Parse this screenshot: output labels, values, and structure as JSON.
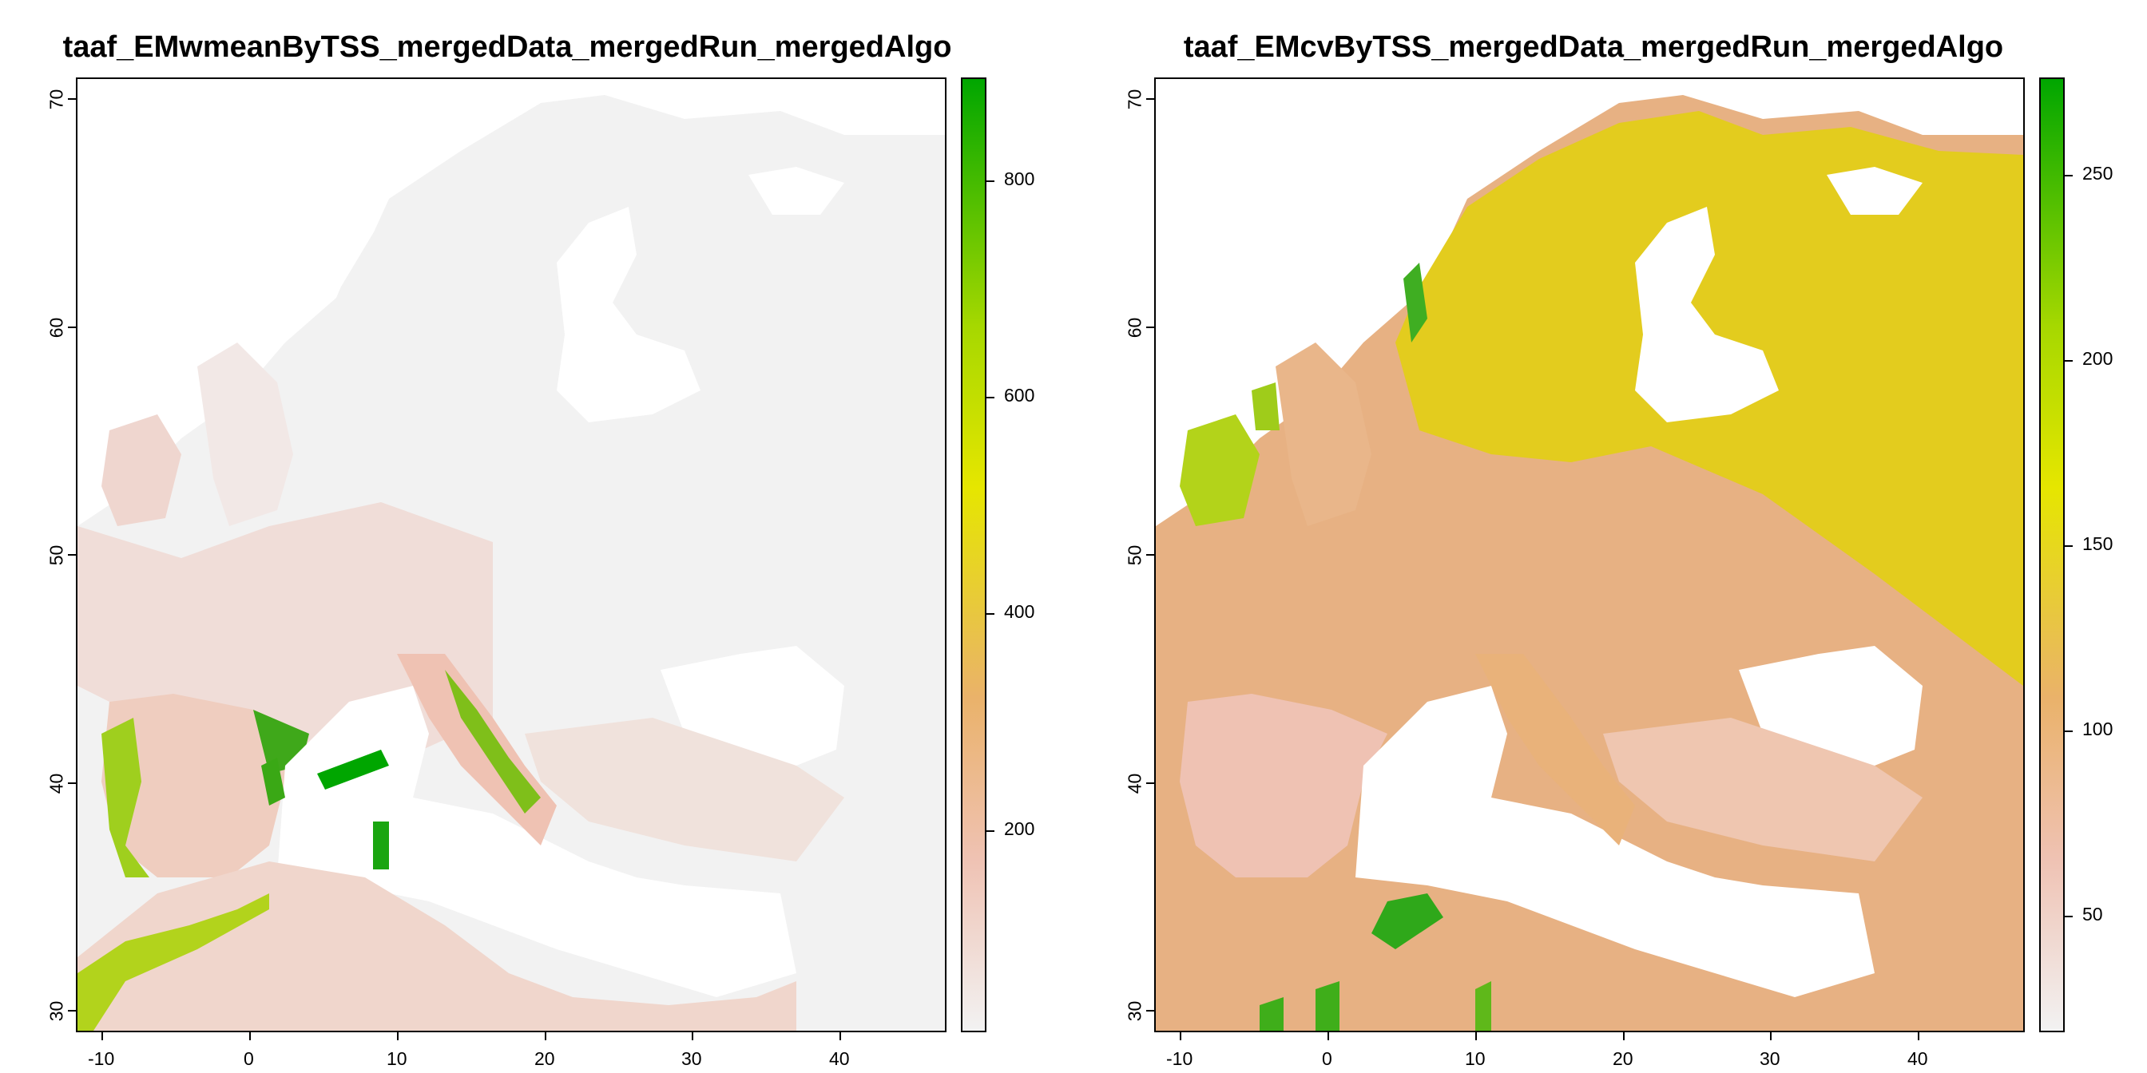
{
  "panels": [
    {
      "title": "taaf_EMwmeanByTSS_mergedData_mergedRun_mergedAlgo",
      "x_ticks": [
        "-10",
        "0",
        "10",
        "20",
        "30",
        "40"
      ],
      "y_ticks": [
        "30",
        "40",
        "50",
        "60",
        "70"
      ],
      "legend_ticks": [
        "200",
        "400",
        "600",
        "800"
      ],
      "legend_colors": [
        "#f2f2f2",
        "#efc2b3",
        "#eab26a",
        "#e6e600",
        "#a6d800",
        "#00a600"
      ]
    },
    {
      "title": "taaf_EMcvByTSS_mergedData_mergedRun_mergedAlgo",
      "x_ticks": [
        "-10",
        "0",
        "10",
        "20",
        "30",
        "40"
      ],
      "y_ticks": [
        "30",
        "40",
        "50",
        "60",
        "70"
      ],
      "legend_ticks": [
        "50",
        "100",
        "150",
        "200",
        "250"
      ],
      "legend_colors": [
        "#f2f2f2",
        "#efc2b3",
        "#eab26a",
        "#e6e600",
        "#a6d800",
        "#00a600"
      ]
    }
  ]
}
